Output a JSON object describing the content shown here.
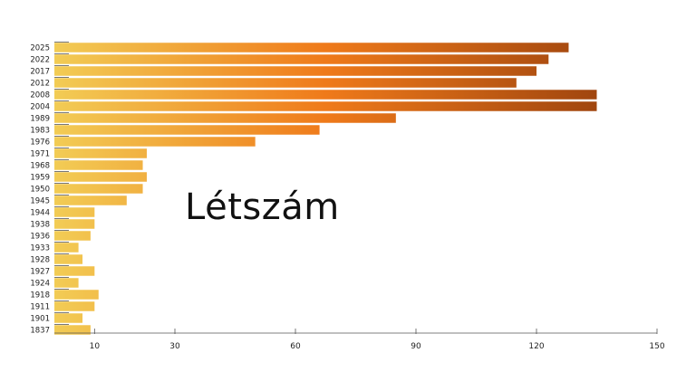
{
  "chart_data": {
    "type": "bar",
    "orientation": "horizontal",
    "title": "Létszám",
    "categories": [
      "2025",
      "2022",
      "2017",
      "2012",
      "2008",
      "2004",
      "1989",
      "1983",
      "1976",
      "1971",
      "1968",
      "1959",
      "1950",
      "1945",
      "1944",
      "1938",
      "1936",
      "1933",
      "1928",
      "1927",
      "1924",
      "1918",
      "1911",
      "1901",
      "1837"
    ],
    "values": [
      128,
      123,
      120,
      115,
      135,
      135,
      85,
      66,
      50,
      23,
      22,
      23,
      22,
      18,
      10,
      10,
      9,
      6,
      7,
      10,
      6,
      11,
      10,
      7,
      9
    ],
    "x_ticks": [
      10,
      30,
      60,
      90,
      120,
      150
    ],
    "xlim": [
      0,
      150
    ],
    "colors": {
      "low": "#f2cc55",
      "mid": "#ef7a1a",
      "high": "#8f3a0c"
    },
    "legend": "none",
    "grid": false
  }
}
